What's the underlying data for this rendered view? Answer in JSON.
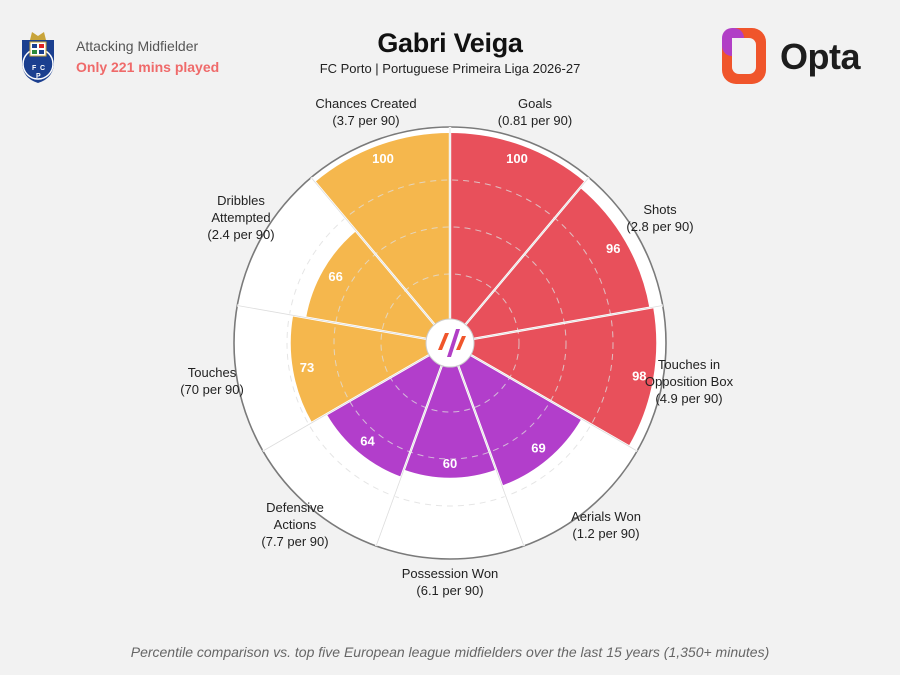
{
  "header": {
    "role": "Attacking Midfielder",
    "minutes_note": "Only 221 mins played",
    "player_name": "Gabri Veiga",
    "subtitle": "FC Porto | Portuguese Primeira Liga 2026-27",
    "brand": "Opta"
  },
  "footnote": "Percentile comparison vs. top five European league midfielders over the last 15 years (1,350+ minutes)",
  "colors": {
    "attacking": "#e8505b",
    "possession": "#f5b74d",
    "defending": "#b23ecb",
    "ring": "#ffffff",
    "outline": "#7a7a7a",
    "accent_red": "#ef6a6a"
  },
  "chart_data": {
    "type": "polar-bar",
    "scale": [
      0,
      100
    ],
    "metrics": [
      {
        "name": "Goals",
        "rate": "(0.81 per 90)",
        "percentile": 100,
        "group": "attacking"
      },
      {
        "name": "Shots",
        "rate": "(2.8 per 90)",
        "percentile": 96,
        "group": "attacking"
      },
      {
        "name": "Touches in Opposition Box",
        "rate": "(4.9 per 90)",
        "percentile": 98,
        "group": "attacking"
      },
      {
        "name": "Aerials Won",
        "rate": "(1.2 per 90)",
        "percentile": 69,
        "group": "defending"
      },
      {
        "name": "Possession Won",
        "rate": "(6.1 per 90)",
        "percentile": 60,
        "group": "defending"
      },
      {
        "name": "Defensive Actions",
        "rate": "(7.7 per 90)",
        "percentile": 64,
        "group": "defending"
      },
      {
        "name": "Touches",
        "rate": "(70 per 90)",
        "percentile": 73,
        "group": "possession"
      },
      {
        "name": "Dribbles Attempted",
        "rate": "(2.4 per 90)",
        "percentile": 66,
        "group": "possession"
      },
      {
        "name": "Chances Created",
        "rate": "(3.7 per 90)",
        "percentile": 100,
        "group": "possession"
      }
    ]
  }
}
